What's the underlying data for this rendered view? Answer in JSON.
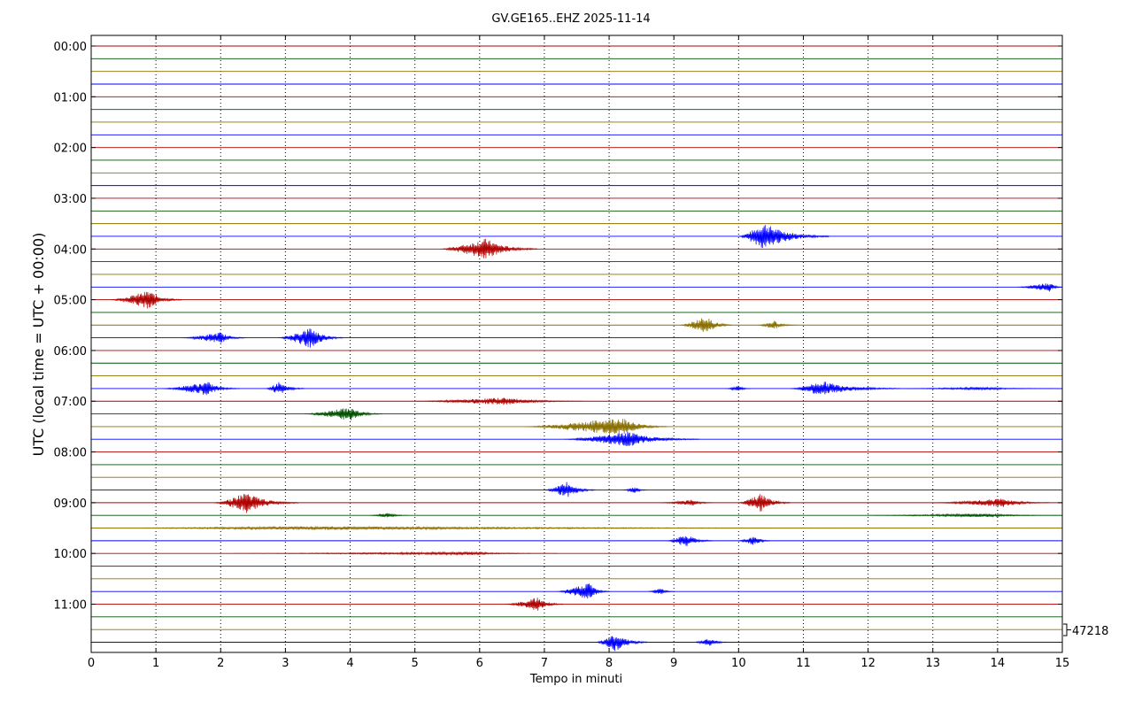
{
  "chart_data": {
    "type": "helicorder",
    "title": "GV.GE165..EHZ 2025-11-14",
    "xlabel": "Tempo in minuti",
    "ylabel": "UTC (local time = UTC + 00:00)",
    "xlim": [
      0,
      15
    ],
    "x_ticks": [
      0,
      1,
      2,
      3,
      4,
      5,
      6,
      7,
      8,
      9,
      10,
      11,
      12,
      13,
      14,
      15
    ],
    "y_tick_labels": [
      "00:00",
      "01:00",
      "02:00",
      "03:00",
      "04:00",
      "05:00",
      "06:00",
      "07:00",
      "08:00",
      "09:00",
      "10:00",
      "11:00"
    ],
    "trace_minutes": 15,
    "trace_count": 48,
    "trace_colors": [
      "#b00000",
      "#005000",
      "#8a7000",
      "#0000ff"
    ],
    "grid": "dotted vertical at each minute",
    "scale_label": "47218",
    "events": [
      {
        "trace": 15,
        "start": 10.0,
        "end": 11.4,
        "peak": 10.4,
        "amp": 1.1
      },
      {
        "trace": 16,
        "start": 5.4,
        "end": 6.9,
        "peak": 6.1,
        "amp": 0.85
      },
      {
        "trace": 19,
        "start": 14.3,
        "end": 15.0,
        "peak": 14.8,
        "amp": 0.4
      },
      {
        "trace": 20,
        "start": 0.3,
        "end": 1.4,
        "peak": 0.9,
        "amp": 0.75
      },
      {
        "trace": 22,
        "start": 9.1,
        "end": 9.9,
        "peak": 9.5,
        "amp": 0.75
      },
      {
        "trace": 22,
        "start": 10.3,
        "end": 10.9,
        "peak": 10.55,
        "amp": 0.35
      },
      {
        "trace": 23,
        "start": 1.4,
        "end": 2.4,
        "peak": 2.0,
        "amp": 0.45
      },
      {
        "trace": 23,
        "start": 2.9,
        "end": 3.9,
        "peak": 3.4,
        "amp": 0.85
      },
      {
        "trace": 27,
        "start": 1.1,
        "end": 2.3,
        "peak": 1.8,
        "amp": 0.55
      },
      {
        "trace": 27,
        "start": 2.7,
        "end": 3.3,
        "peak": 2.9,
        "amp": 0.55
      },
      {
        "trace": 27,
        "start": 9.8,
        "end": 10.2,
        "peak": 10.0,
        "amp": 0.25
      },
      {
        "trace": 27,
        "start": 10.8,
        "end": 12.5,
        "peak": 11.3,
        "amp": 0.6
      },
      {
        "trace": 27,
        "start": 12.5,
        "end": 15.0,
        "peak": 13.8,
        "amp": 0.12
      },
      {
        "trace": 28,
        "start": 5.0,
        "end": 7.6,
        "peak": 6.4,
        "amp": 0.3
      },
      {
        "trace": 29,
        "start": 3.3,
        "end": 4.5,
        "peak": 4.0,
        "amp": 0.55
      },
      {
        "trace": 30,
        "start": 6.7,
        "end": 8.9,
        "peak": 8.2,
        "amp": 0.75
      },
      {
        "trace": 31,
        "start": 7.3,
        "end": 9.4,
        "peak": 8.3,
        "amp": 0.6
      },
      {
        "trace": 35,
        "start": 7.0,
        "end": 7.8,
        "peak": 7.35,
        "amp": 0.65
      },
      {
        "trace": 35,
        "start": 8.2,
        "end": 8.6,
        "peak": 8.4,
        "amp": 0.25
      },
      {
        "trace": 36,
        "start": 1.9,
        "end": 3.2,
        "peak": 2.4,
        "amp": 0.85
      },
      {
        "trace": 36,
        "start": 8.8,
        "end": 9.6,
        "peak": 9.3,
        "amp": 0.25
      },
      {
        "trace": 36,
        "start": 10.0,
        "end": 10.8,
        "peak": 10.35,
        "amp": 0.75
      },
      {
        "trace": 36,
        "start": 13.0,
        "end": 14.8,
        "peak": 14.1,
        "amp": 0.35
      },
      {
        "trace": 37,
        "start": 4.3,
        "end": 4.9,
        "peak": 4.6,
        "amp": 0.2
      },
      {
        "trace": 37,
        "start": 12.0,
        "end": 15.0,
        "peak": 13.8,
        "amp": 0.15
      },
      {
        "trace": 38,
        "start": 0.0,
        "end": 15.0,
        "peak": 3.5,
        "amp": 0.15
      },
      {
        "trace": 39,
        "start": 8.9,
        "end": 9.6,
        "peak": 9.2,
        "amp": 0.55
      },
      {
        "trace": 39,
        "start": 10.0,
        "end": 10.5,
        "peak": 10.25,
        "amp": 0.4
      },
      {
        "trace": 40,
        "start": 2.2,
        "end": 7.2,
        "peak": 5.9,
        "amp": 0.12
      },
      {
        "trace": 43,
        "start": 7.2,
        "end": 8.0,
        "peak": 7.7,
        "amp": 0.7
      },
      {
        "trace": 43,
        "start": 8.6,
        "end": 9.0,
        "peak": 8.8,
        "amp": 0.3
      },
      {
        "trace": 44,
        "start": 6.4,
        "end": 7.3,
        "peak": 6.9,
        "amp": 0.55
      },
      {
        "trace": 47,
        "start": 7.8,
        "end": 8.6,
        "peak": 8.1,
        "amp": 0.75
      },
      {
        "trace": 47,
        "start": 9.3,
        "end": 9.9,
        "peak": 9.55,
        "amp": 0.3
      }
    ]
  }
}
